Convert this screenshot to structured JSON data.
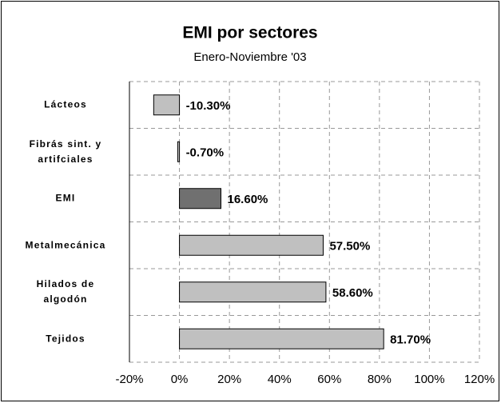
{
  "chart_data": {
    "type": "bar",
    "orientation": "horizontal",
    "title": "EMI por sectores",
    "subtitle": "Enero-Noviembre '03",
    "categories": [
      "Lácteos",
      "Fibrás sint. y\nartifciales",
      "EMI",
      "Metalmecánica",
      "Hilados de\nalgodón",
      "Tejidos"
    ],
    "values": [
      -10.3,
      -0.7,
      16.6,
      57.5,
      58.6,
      81.7
    ],
    "value_labels": [
      "-10.30%",
      "-0.70%",
      "16.60%",
      "57.50%",
      "58.60%",
      "81.70%"
    ],
    "colors": [
      "#c0c0c0",
      "#c0c0c0",
      "#707070",
      "#c0c0c0",
      "#c0c0c0",
      "#c0c0c0"
    ],
    "xlim": [
      -20,
      120
    ],
    "xticks": [
      {
        "value": -20,
        "label": "-20%"
      },
      {
        "value": 0,
        "label": "0%"
      },
      {
        "value": 20,
        "label": "20%"
      },
      {
        "value": 40,
        "label": "40%"
      },
      {
        "value": 60,
        "label": "60%"
      },
      {
        "value": 80,
        "label": "80%"
      },
      {
        "value": 100,
        "label": "100%"
      },
      {
        "value": 120,
        "label": "120%"
      }
    ],
    "grid": true
  }
}
